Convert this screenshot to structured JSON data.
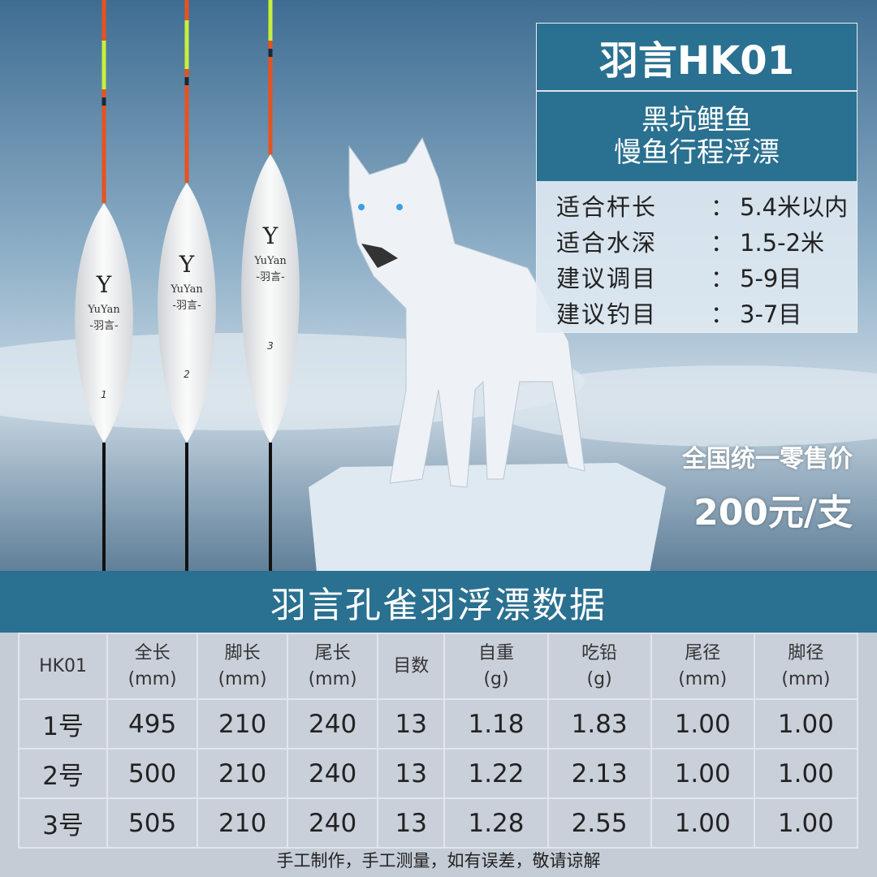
{
  "product": {
    "title": "羽言HK01",
    "subtitle_lines": [
      "黑坑鲤鱼",
      "慢鱼行程浮漂"
    ],
    "specs": [
      {
        "label": "适合杆长",
        "value": "5.4米以内"
      },
      {
        "label": "适合水深",
        "value": "1.5-2米"
      },
      {
        "label": "建议调目",
        "value": "5-9目"
      },
      {
        "label": "建议钓目",
        "value": "3-7目"
      }
    ],
    "colon": "：",
    "price_label": "全国统一零售价",
    "price": "200元/支",
    "float_brand": "YuYan",
    "float_brand_cn": "-羽言-",
    "float_numbers": [
      "1",
      "2",
      "3"
    ]
  },
  "table": {
    "title": "羽言孔雀羽浮漂数据",
    "headers": [
      {
        "name": "HK01",
        "unit": ""
      },
      {
        "name": "全长",
        "unit": "(mm)"
      },
      {
        "name": "脚长",
        "unit": "(mm)"
      },
      {
        "name": "尾长",
        "unit": "(mm)"
      },
      {
        "name": "目数",
        "unit": ""
      },
      {
        "name": "自重",
        "unit": "(g)"
      },
      {
        "name": "吃铅",
        "unit": "(g)"
      },
      {
        "name": "尾径",
        "unit": "(mm)"
      },
      {
        "name": "脚径",
        "unit": "(mm)"
      }
    ],
    "rows": [
      [
        "1号",
        "495",
        "210",
        "240",
        "13",
        "1.18",
        "1.83",
        "1.00",
        "1.00"
      ],
      [
        "2号",
        "500",
        "210",
        "240",
        "13",
        "1.22",
        "2.13",
        "1.00",
        "1.00"
      ],
      [
        "3号",
        "505",
        "210",
        "240",
        "13",
        "1.28",
        "2.55",
        "1.00",
        "1.00"
      ]
    ],
    "footnote": "手工制作，手工测量，如有误差，敬请谅解"
  },
  "colors": {
    "band": "#2a7090",
    "table_bg": "#c9d0da"
  }
}
